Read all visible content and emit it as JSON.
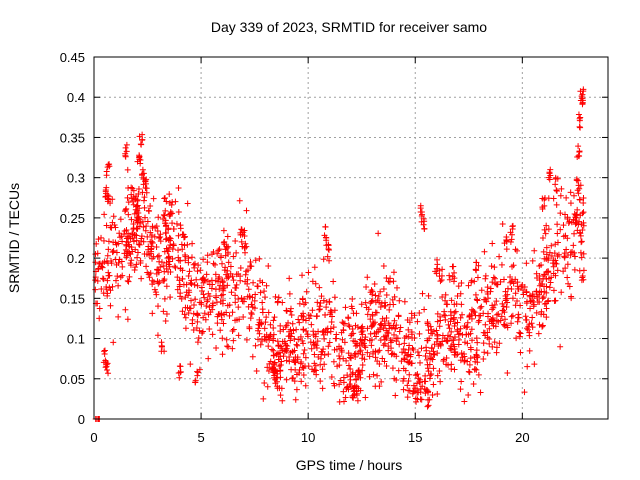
{
  "chart_data": {
    "type": "scatter",
    "title": "Day 339 of 2023, SRMTID for receiver samo",
    "xlabel": "GPS time / hours",
    "ylabel": "SRMTID / TECUs",
    "xlim": [
      0,
      24
    ],
    "ylim": [
      0,
      0.45
    ],
    "x_ticks": [
      0,
      5,
      10,
      15,
      20
    ],
    "x_tick_labels": [
      "0",
      "5",
      "10",
      "15",
      "20"
    ],
    "y_ticks": [
      0,
      0.05,
      0.1,
      0.15,
      0.2,
      0.25,
      0.3,
      0.35,
      0.4,
      0.45
    ],
    "y_tick_labels": [
      "0",
      "0.05",
      "0.1",
      "0.15",
      "0.2",
      "0.25",
      "0.3",
      "0.35",
      "0.4",
      "0.45"
    ],
    "grid": true,
    "marker": "+",
    "series": [
      {
        "name": "SRMTID",
        "color": "#ff0000",
        "trend": [
          [
            0.0,
            0.175
          ],
          [
            0.5,
            0.19
          ],
          [
            1.0,
            0.2
          ],
          [
            1.5,
            0.215
          ],
          [
            2.0,
            0.24
          ],
          [
            2.5,
            0.22
          ],
          [
            3.0,
            0.18
          ],
          [
            3.5,
            0.22
          ],
          [
            4.0,
            0.2
          ],
          [
            4.5,
            0.15
          ],
          [
            5.0,
            0.14
          ],
          [
            5.5,
            0.155
          ],
          [
            6.0,
            0.165
          ],
          [
            6.5,
            0.15
          ],
          [
            7.0,
            0.17
          ],
          [
            7.5,
            0.14
          ],
          [
            8.0,
            0.12
          ],
          [
            8.5,
            0.09
          ],
          [
            9.0,
            0.1
          ],
          [
            9.5,
            0.09
          ],
          [
            10.0,
            0.1
          ],
          [
            10.5,
            0.12
          ],
          [
            11.0,
            0.1
          ],
          [
            11.5,
            0.08
          ],
          [
            12.0,
            0.08
          ],
          [
            12.5,
            0.09
          ],
          [
            13.0,
            0.12
          ],
          [
            13.5,
            0.12
          ],
          [
            14.0,
            0.12
          ],
          [
            14.5,
            0.08
          ],
          [
            15.0,
            0.07
          ],
          [
            15.5,
            0.07
          ],
          [
            16.0,
            0.1
          ],
          [
            16.5,
            0.11
          ],
          [
            17.0,
            0.11
          ],
          [
            17.5,
            0.1
          ],
          [
            18.0,
            0.11
          ],
          [
            18.5,
            0.13
          ],
          [
            19.0,
            0.15
          ],
          [
            19.5,
            0.16
          ],
          [
            20.0,
            0.14
          ],
          [
            20.5,
            0.15
          ],
          [
            21.0,
            0.17
          ],
          [
            21.5,
            0.2
          ],
          [
            22.0,
            0.22
          ],
          [
            22.5,
            0.22
          ],
          [
            22.9,
            0.24
          ]
        ],
        "spread": 0.035,
        "clusters": [
          [
            0.15,
            0.0
          ],
          [
            0.25,
            0.0
          ],
          [
            0.6,
            0.28
          ],
          [
            0.65,
            0.31
          ],
          [
            0.7,
            0.27
          ],
          [
            0.5,
            0.08
          ],
          [
            0.6,
            0.06
          ],
          [
            2.2,
            0.345
          ],
          [
            2.1,
            0.32
          ],
          [
            2.3,
            0.3
          ],
          [
            1.8,
            0.28
          ],
          [
            2.4,
            0.29
          ],
          [
            2.0,
            0.27
          ],
          [
            1.5,
            0.335
          ],
          [
            3.3,
            0.25
          ],
          [
            3.4,
            0.24
          ],
          [
            3.6,
            0.26
          ],
          [
            3.2,
            0.09
          ],
          [
            4.0,
            0.06
          ],
          [
            4.8,
            0.05
          ],
          [
            4.2,
            0.22
          ],
          [
            6.9,
            0.23
          ],
          [
            7.0,
            0.22
          ],
          [
            6.2,
            0.21
          ],
          [
            8.4,
            0.06
          ],
          [
            8.5,
            0.05
          ],
          [
            8.7,
            0.07
          ],
          [
            10.8,
            0.23
          ],
          [
            10.9,
            0.21
          ],
          [
            12.2,
            0.04
          ],
          [
            12.1,
            0.03
          ],
          [
            15.3,
            0.26
          ],
          [
            15.35,
            0.24
          ],
          [
            15.5,
            0.045
          ],
          [
            15.6,
            0.025
          ],
          [
            16.0,
            0.19
          ],
          [
            16.2,
            0.18
          ],
          [
            16.8,
            0.18
          ],
          [
            17.8,
            0.07
          ],
          [
            17.9,
            0.19
          ],
          [
            19.2,
            0.22
          ],
          [
            19.5,
            0.23
          ],
          [
            21.3,
            0.3
          ],
          [
            21.6,
            0.29
          ],
          [
            21.0,
            0.27
          ],
          [
            22.6,
            0.33
          ],
          [
            22.7,
            0.37
          ],
          [
            22.75,
            0.4
          ],
          [
            22.8,
            0.405
          ],
          [
            22.6,
            0.29
          ],
          [
            22.5,
            0.25
          ]
        ]
      }
    ]
  }
}
